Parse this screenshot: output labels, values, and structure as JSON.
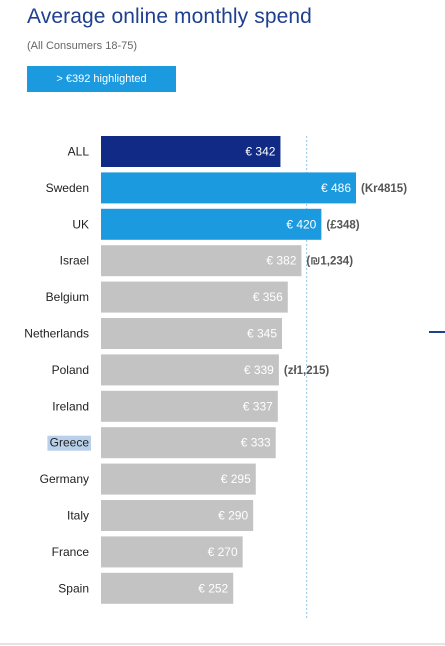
{
  "title": "Average online monthly spend",
  "subtitle": "(All Consumers 18-75)",
  "highlight_label": "> €392 highlighted",
  "colors": {
    "title": "#1f3f8f",
    "all_bar": "#112a85",
    "highlight_bar": "#1b9ae0",
    "default_bar": "#c3c3c3",
    "reference_line": "#8ec6ea"
  },
  "chart_data": {
    "type": "bar",
    "orientation": "horizontal",
    "threshold": 392,
    "categories": [
      "ALL",
      "Sweden",
      "UK",
      "Israel",
      "Belgium",
      "Netherlands",
      "Poland",
      "Ireland",
      "Greece",
      "Germany",
      "Italy",
      "France",
      "Spain"
    ],
    "values": [
      342,
      486,
      420,
      382,
      356,
      345,
      339,
      337,
      333,
      295,
      290,
      270,
      252
    ],
    "value_labels": [
      "€ 342",
      "€ 486",
      "€ 420",
      "€ 382",
      "€ 356",
      "€ 345",
      "€ 339",
      "€ 337",
      "€ 333",
      "€ 295",
      "€ 290",
      "€ 270",
      "€ 252"
    ],
    "local_currency_labels": [
      "",
      "(Kr4815)",
      "(£348)",
      "(₪1,234)",
      "",
      "",
      "(zł1,215)",
      "",
      "",
      "",
      "",
      "",
      ""
    ],
    "bar_styles": [
      "all",
      "highlight",
      "highlight",
      "default",
      "default",
      "default",
      "default",
      "default",
      "default",
      "default",
      "default",
      "default",
      "default"
    ],
    "selected_category": "Greece",
    "xlim": [
      0,
      486
    ],
    "grid": false
  }
}
